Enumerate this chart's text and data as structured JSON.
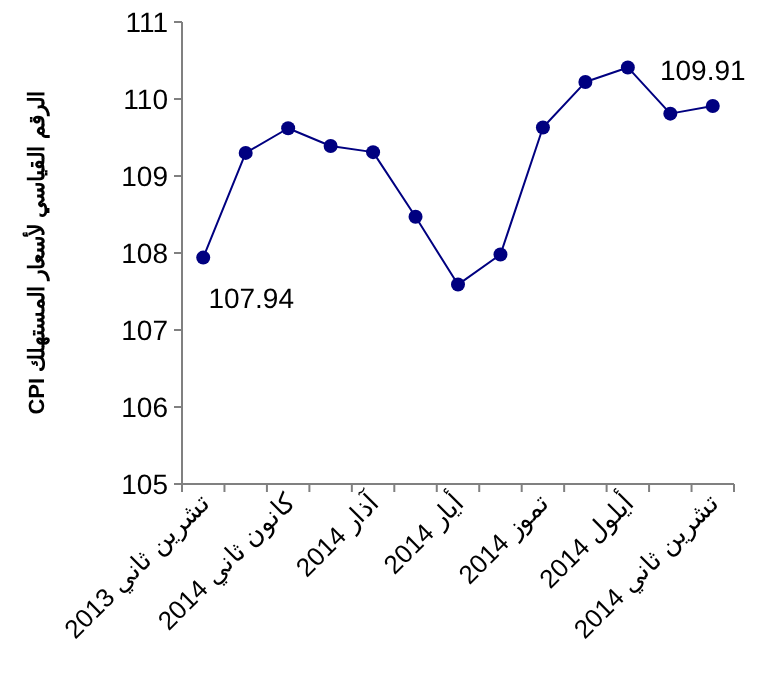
{
  "chart_data": {
    "type": "line",
    "ylabel": "الرقم القياسي لأسعار المستهلك CPI",
    "categories": [
      "تشرين ثاني 2013",
      null,
      "كانون ثاني 2014",
      null,
      "آذار 2014",
      null,
      "أيار 2014",
      null,
      "تموز 2014",
      null,
      "أيلول 2014",
      null,
      "تشرين ثاني 2014"
    ],
    "series": [
      {
        "color": "#000080",
        "values": [
          107.94,
          109.3,
          109.62,
          109.39,
          109.31,
          108.47,
          107.59,
          107.98,
          109.63,
          110.22,
          110.41,
          109.81,
          109.91
        ],
        "value_labels": [
          "107.94",
          null,
          null,
          null,
          null,
          null,
          null,
          null,
          null,
          null,
          null,
          null,
          "109.91"
        ]
      }
    ],
    "ylim": [
      105,
      111
    ],
    "yticks": [
      105,
      106,
      107,
      108,
      109,
      110,
      111
    ],
    "marker": "circle",
    "line_style": "solid",
    "grid": false
  }
}
